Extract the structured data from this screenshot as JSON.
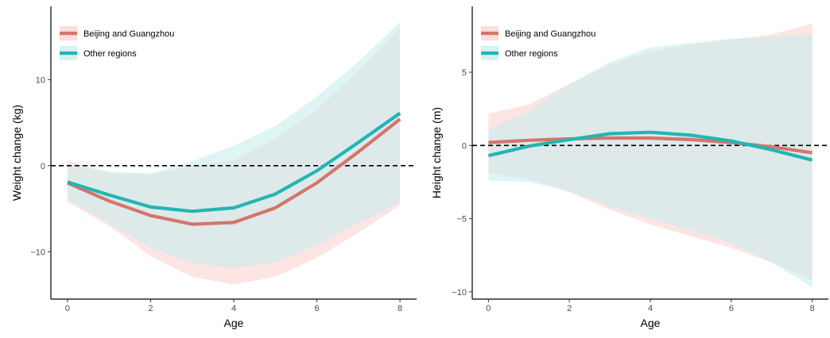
{
  "chart_data": [
    {
      "type": "line",
      "xlabel": "Age",
      "ylabel": "Weight change (kg)",
      "xlim": [
        -0.4,
        8.4
      ],
      "ylim": [
        -15.5,
        18.5
      ],
      "xticks": [
        0,
        2,
        4,
        6,
        8
      ],
      "yticks": [
        -10,
        0,
        10
      ],
      "reference_line": 0,
      "legend_position": "top-left",
      "grid": false,
      "x": [
        0,
        1,
        2,
        3,
        4,
        5,
        6,
        7,
        8
      ],
      "series": [
        {
          "name": "Beijing and Guangzhou",
          "color": "#d4756d",
          "band_color": "#fbd0cd",
          "values": [
            -2.0,
            -4.1,
            -5.8,
            -6.8,
            -6.6,
            -4.9,
            -2.0,
            1.6,
            5.4
          ],
          "lower": [
            -4.2,
            -7.0,
            -10.5,
            -12.9,
            -13.8,
            -12.9,
            -10.7,
            -7.8,
            -4.6
          ],
          "upper": [
            0.6,
            -0.8,
            -1.0,
            0.0,
            0.6,
            3.1,
            6.5,
            11.0,
            16.0
          ]
        },
        {
          "name": "Other regions",
          "color": "#23b5b3",
          "band_color": "#c5ecec",
          "values": [
            -1.9,
            -3.4,
            -4.8,
            -5.3,
            -4.9,
            -3.3,
            -0.6,
            2.7,
            6.1
          ],
          "lower": [
            -3.9,
            -6.7,
            -9.6,
            -11.3,
            -11.9,
            -11.2,
            -9.2,
            -6.7,
            -4.3
          ],
          "upper": [
            0.1,
            -0.7,
            -0.9,
            0.5,
            2.3,
            4.6,
            8.0,
            12.1,
            16.7
          ]
        }
      ]
    },
    {
      "type": "line",
      "xlabel": "Age",
      "ylabel": "Height change (m)",
      "xlim": [
        -0.4,
        8.4
      ],
      "ylim": [
        -10.5,
        9.5
      ],
      "xticks": [
        0,
        2,
        4,
        6,
        8
      ],
      "yticks": [
        -10,
        -5,
        0,
        5
      ],
      "reference_line": 0,
      "legend_position": "top-left",
      "grid": false,
      "x": [
        0,
        1,
        2,
        3,
        4,
        5,
        6,
        7,
        8
      ],
      "series": [
        {
          "name": "Beijing and Guangzhou",
          "color": "#d4756d",
          "band_color": "#fbd0cd",
          "values": [
            0.2,
            0.35,
            0.45,
            0.5,
            0.5,
            0.4,
            0.2,
            -0.1,
            -0.5
          ],
          "lower": [
            -1.9,
            -2.3,
            -3.2,
            -4.4,
            -5.4,
            -6.2,
            -7.0,
            -8.0,
            -9.2
          ],
          "upper": [
            2.2,
            2.8,
            4.2,
            5.5,
            6.4,
            6.9,
            7.2,
            7.6,
            8.3
          ]
        },
        {
          "name": "Other regions",
          "color": "#23b5b3",
          "band_color": "#c5ecec",
          "values": [
            -0.7,
            -0.05,
            0.4,
            0.8,
            0.9,
            0.7,
            0.3,
            -0.3,
            -1.0
          ],
          "lower": [
            -2.4,
            -2.5,
            -3.1,
            -4.2,
            -5.0,
            -5.8,
            -6.7,
            -8.0,
            -9.7
          ],
          "upper": [
            1.1,
            2.3,
            4.2,
            5.7,
            6.7,
            7.0,
            7.3,
            7.4,
            7.6
          ]
        }
      ]
    }
  ]
}
